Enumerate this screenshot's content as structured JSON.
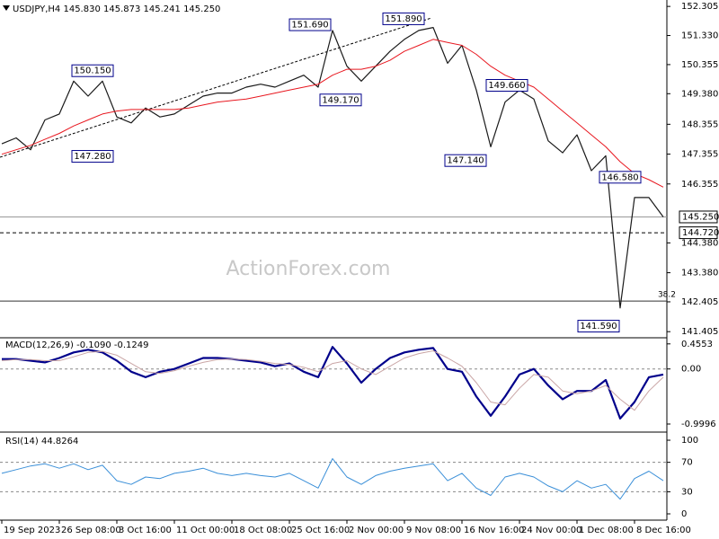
{
  "chart_data": [
    {
      "type": "line",
      "title": "USDJPY,H4  145.830 145.873 145.241 145.250",
      "categories": [
        "19 Sep 2023",
        null,
        null,
        null,
        "26 Sep 08:00",
        null,
        null,
        null,
        "3 Oct 16:00",
        null,
        null,
        null,
        "11 Oct 00:00",
        null,
        null,
        null,
        "18 Oct 08:00",
        null,
        null,
        null,
        "25 Oct 16:00",
        null,
        null,
        null,
        "2 Nov 00:00",
        null,
        null,
        null,
        "9 Nov 08:00",
        null,
        null,
        null,
        "16 Nov 16:00",
        null,
        null,
        null,
        "24 Nov 00:00",
        null,
        null,
        null,
        "1 Dec 08:00",
        null,
        null,
        null,
        "8 Dec 16:00",
        null,
        null
      ],
      "series": [
        {
          "color": "#1a1a1a",
          "width": 1.2,
          "values": [
            147.7,
            147.9,
            147.5,
            148.5,
            148.7,
            149.8,
            149.3,
            149.8,
            148.6,
            148.4,
            148.9,
            148.6,
            148.7,
            149.0,
            149.3,
            149.4,
            149.4,
            149.6,
            149.7,
            149.6,
            149.8,
            150.0,
            149.6,
            151.5,
            150.3,
            149.8,
            150.3,
            150.8,
            151.2,
            151.5,
            151.6,
            150.4,
            151.0,
            149.5,
            147.6,
            149.1,
            149.5,
            149.2,
            147.8,
            147.4,
            148.0,
            146.8,
            147.3,
            142.2,
            145.9,
            145.9,
            145.25
          ]
        },
        {
          "color": "#e8171f",
          "width": 1,
          "values": [
            147.35,
            147.5,
            147.65,
            147.85,
            148.05,
            148.3,
            148.5,
            148.7,
            148.8,
            148.85,
            148.85,
            148.85,
            148.85,
            148.9,
            149.0,
            149.1,
            149.15,
            149.2,
            149.3,
            149.4,
            149.5,
            149.6,
            149.7,
            150.0,
            150.2,
            150.2,
            150.3,
            150.5,
            150.8,
            151.0,
            151.2,
            151.1,
            151.0,
            150.7,
            150.3,
            150.0,
            149.8,
            149.6,
            149.2,
            148.8,
            148.4,
            148.0,
            147.6,
            147.1,
            146.7,
            146.5,
            146.25
          ]
        }
      ],
      "ylim": [
        141.23,
        152.52
      ],
      "yticks": [
        152.305,
        {
          "value": 151.33,
          "label": "151.330"
        },
        150.355,
        {
          "value": 149.38,
          "label": "149.380"
        },
        148.355,
        147.355,
        146.355,
        {
          "value": 144.38,
          "label": "144.380"
        },
        {
          "value": 143.38,
          "label": "143.380"
        },
        142.405,
        141.405
      ],
      "annotations": [
        {
          "value": 150.15,
          "label": "150.150"
        },
        {
          "value": 147.28,
          "label": "147.280"
        },
        {
          "value": 151.69,
          "label": "151.690"
        },
        {
          "value": 149.17,
          "label": "149.170"
        },
        {
          "value": 151.89,
          "label": "151.890"
        },
        {
          "value": 149.66,
          "label": "149.660"
        },
        {
          "value": 147.14,
          "label": "147.140"
        },
        {
          "value": 146.58,
          "label": "146.580"
        },
        {
          "value": 141.59,
          "label": "141.590"
        }
      ],
      "hlines": [
        {
          "value": 145.25,
          "label": "145.250",
          "style": "solid"
        },
        {
          "value": 144.72,
          "label": "144.720",
          "style": "dashed"
        }
      ],
      "fib": {
        "level": 38.2,
        "price": 142.43
      },
      "watermark": "ActionForex.com"
    },
    {
      "type": "line",
      "title": "MACD(12,26,9) -0.1090 -0.1249",
      "series": [
        {
          "color": "#00008b",
          "width": 2.2,
          "values": [
            0.18,
            0.18,
            0.15,
            0.12,
            0.2,
            0.3,
            0.35,
            0.3,
            0.15,
            -0.05,
            -0.15,
            -0.05,
            0.0,
            0.1,
            0.2,
            0.2,
            0.18,
            0.15,
            0.12,
            0.05,
            0.1,
            -0.05,
            -0.15,
            0.4,
            0.1,
            -0.25,
            0.0,
            0.2,
            0.3,
            0.35,
            0.38,
            0.0,
            -0.05,
            -0.5,
            -0.85,
            -0.5,
            -0.1,
            0.0,
            -0.3,
            -0.55,
            -0.4,
            -0.4,
            -0.2,
            -0.9,
            -0.6,
            -0.15,
            -0.1
          ]
        },
        {
          "color": "#c9a5a5",
          "width": 1,
          "values": [
            0.15,
            0.17,
            0.17,
            0.15,
            0.15,
            0.22,
            0.3,
            0.32,
            0.25,
            0.1,
            -0.05,
            -0.08,
            -0.03,
            0.05,
            0.12,
            0.17,
            0.18,
            0.17,
            0.14,
            0.1,
            0.08,
            0.03,
            -0.05,
            0.1,
            0.15,
            0.0,
            -0.1,
            0.05,
            0.2,
            0.28,
            0.33,
            0.2,
            0.05,
            -0.25,
            -0.6,
            -0.65,
            -0.35,
            -0.1,
            -0.15,
            -0.4,
            -0.45,
            -0.4,
            -0.3,
            -0.55,
            -0.75,
            -0.4,
            -0.15
          ]
        }
      ],
      "ylim": [
        -1.13,
        0.55
      ],
      "yticks": [
        0.4553,
        {
          "value": 0,
          "label": "0.00"
        },
        -0.9996
      ],
      "levels": [
        0
      ]
    },
    {
      "type": "line",
      "title": "RSI(14) 44.8264",
      "series": [
        {
          "color": "#3a8fd8",
          "width": 1,
          "values": [
            55,
            60,
            65,
            68,
            62,
            68,
            60,
            66,
            45,
            40,
            50,
            48,
            55,
            58,
            62,
            55,
            52,
            55,
            52,
            50,
            55,
            45,
            35,
            75,
            50,
            40,
            52,
            58,
            62,
            65,
            68,
            45,
            55,
            35,
            25,
            50,
            55,
            50,
            38,
            30,
            45,
            35,
            40,
            20,
            48,
            58,
            45
          ]
        }
      ],
      "ylim": [
        -7.3,
        109.8
      ],
      "yticks": [
        100,
        70,
        30,
        0
      ],
      "levels": [
        70,
        30
      ]
    }
  ]
}
